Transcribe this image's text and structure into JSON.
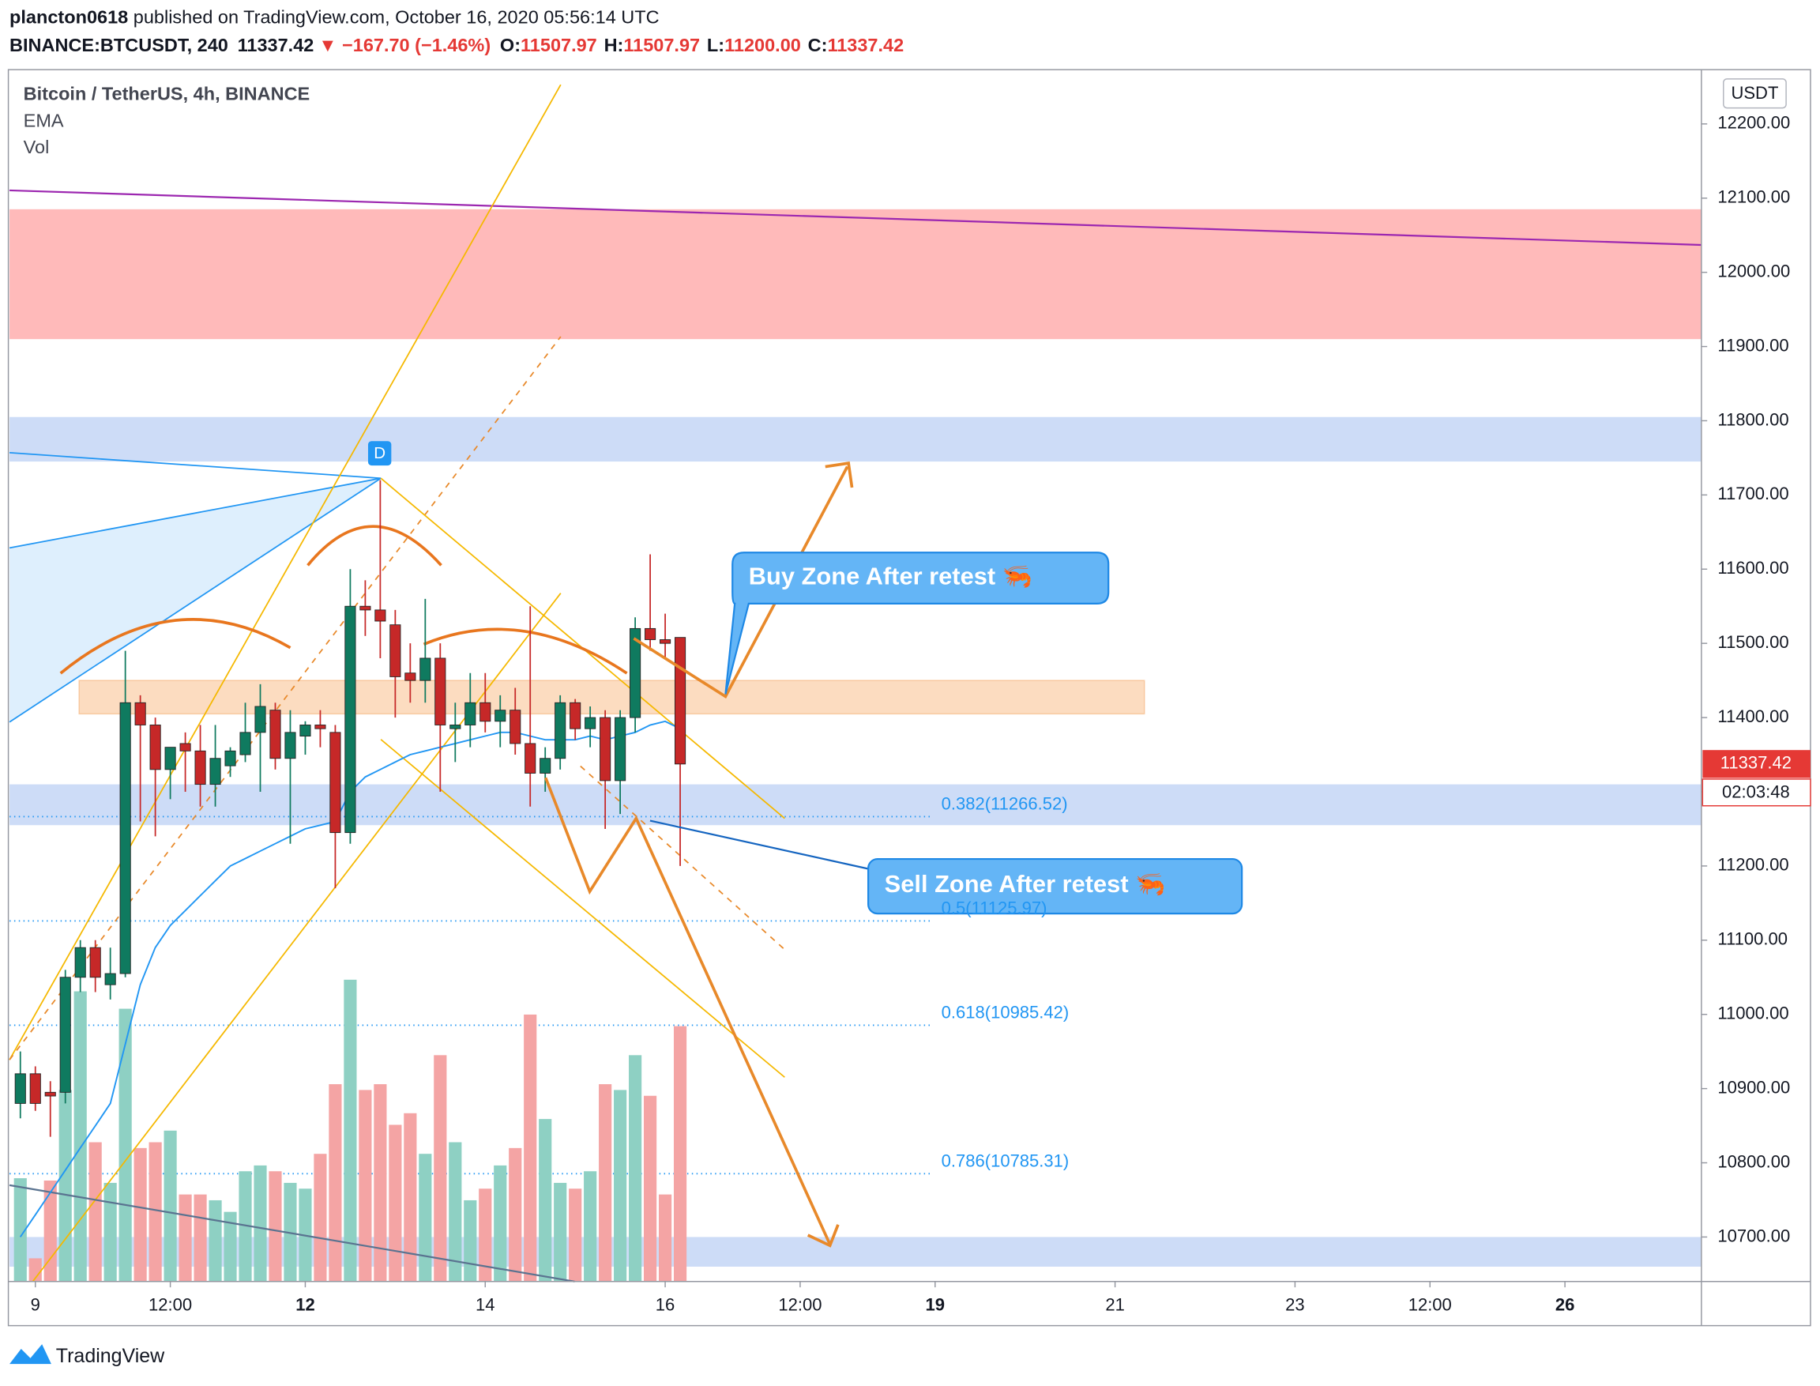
{
  "header": {
    "user": "plancton0618",
    "published": "published on TradingView.com, October 16, 2020 05:56:14 UTC",
    "symbol": "BINANCE:BTCUSDT, 240",
    "last": "11337.42",
    "change": "▼ −167.70 (−1.46%)",
    "ohlc": [
      {
        "key": "O:",
        "value": "11507.97"
      },
      {
        "key": "H:",
        "value": "11507.97"
      },
      {
        "key": "L:",
        "value": "11200.00"
      },
      {
        "key": "C:",
        "value": "11337.42"
      }
    ]
  },
  "chart_data": {
    "type": "candlestick",
    "title": "Bitcoin / TetherUS, 4h, BINANCE",
    "indicators": [
      "EMA",
      "Vol"
    ],
    "currency": "USDT",
    "open": [
      10880,
      10920,
      10895,
      10895,
      11050,
      11090,
      11040,
      11055,
      11420,
      11390,
      11330,
      11365,
      11355,
      11310,
      11335,
      11350,
      11380,
      11410,
      11345,
      11375,
      11390,
      11380,
      11245,
      11550,
      11545,
      11525,
      11460,
      11450,
      11480,
      11385,
      11390,
      11420,
      11395,
      11410,
      11365,
      11325,
      11345,
      11420,
      11385,
      11400,
      11315,
      11400,
      11520,
      11505,
      11507.97
    ],
    "high": [
      10950,
      10930,
      10910,
      11060,
      11100,
      11100,
      11090,
      11490,
      11430,
      11400,
      11360,
      11380,
      11390,
      11390,
      11360,
      11420,
      11445,
      11420,
      11410,
      11395,
      11410,
      11390,
      11600,
      11585,
      11720,
      11545,
      11500,
      11560,
      11500,
      11420,
      11460,
      11460,
      11430,
      11440,
      11550,
      11360,
      11430,
      11425,
      11415,
      11410,
      11410,
      11535,
      11620,
      11540,
      11507.97
    ],
    "low": [
      10860,
      10870,
      10835,
      10880,
      11030,
      11030,
      11020,
      11050,
      11260,
      11240,
      11290,
      11300,
      11280,
      11280,
      11320,
      11340,
      11300,
      11330,
      11230,
      11350,
      11360,
      11170,
      11230,
      11510,
      11480,
      11400,
      11420,
      11420,
      11300,
      11340,
      11360,
      11380,
      11360,
      11350,
      11280,
      11300,
      11330,
      11370,
      11360,
      11250,
      11270,
      11380,
      11490,
      11480,
      11200
    ],
    "close": [
      10920,
      10880,
      10890,
      11050,
      11090,
      11050,
      11055,
      11420,
      11390,
      11330,
      11360,
      11355,
      11310,
      11345,
      11355,
      11380,
      11415,
      11345,
      11380,
      11390,
      11385,
      11245,
      11550,
      11545,
      11530,
      11455,
      11450,
      11480,
      11390,
      11390,
      11420,
      11395,
      11410,
      11365,
      11325,
      11345,
      11420,
      11385,
      11400,
      11315,
      11400,
      11520,
      11505,
      11500,
      11337.42
    ],
    "ema": [
      10700,
      10730,
      10760,
      10790,
      10820,
      10850,
      10880,
      10960,
      11040,
      11090,
      11120,
      11140,
      11160,
      11180,
      11200,
      11210,
      11220,
      11230,
      11240,
      11250,
      11255,
      11260,
      11300,
      11320,
      11330,
      11340,
      11350,
      11355,
      11360,
      11365,
      11370,
      11375,
      11380,
      11380,
      11375,
      11370,
      11370,
      11370,
      11375,
      11370,
      11375,
      11380,
      11390,
      11395,
      11385
    ],
    "volume": [
      89,
      20,
      87,
      165,
      250,
      120,
      85,
      235,
      115,
      120,
      130,
      75,
      75,
      70,
      60,
      95,
      100,
      95,
      85,
      80,
      110,
      170,
      260,
      165,
      170,
      135,
      145,
      110,
      195,
      120,
      70,
      80,
      100,
      115,
      230,
      140,
      85,
      80,
      95,
      170,
      165,
      195,
      160,
      75,
      220
    ],
    "up_color": "#0f7a5f",
    "down_color": "#c62828",
    "up_volume_color": "#8ed0c3",
    "down_volume_color": "#f4a4a4",
    "ema_color": "#2196f3",
    "xlim": [
      -0.8,
      112.1
    ],
    "xticks": [
      {
        "value": 1,
        "label": "9"
      },
      {
        "value": 10,
        "label": "12:00"
      },
      {
        "value": 19,
        "label": "12"
      },
      {
        "value": 31,
        "label": "14"
      },
      {
        "value": 43,
        "label": "16"
      },
      {
        "value": 52,
        "label": "12:00"
      },
      {
        "value": 61,
        "label": "19"
      },
      {
        "value": 73,
        "label": "21"
      },
      {
        "value": 85,
        "label": "23"
      },
      {
        "value": 94,
        "label": "12:00"
      },
      {
        "value": 103,
        "label": "26"
      }
    ],
    "ylim": [
      10640,
      12270
    ],
    "yticks": [
      {
        "value": 10700,
        "label": "10700.00"
      },
      {
        "value": 10800,
        "label": "10800.00"
      },
      {
        "value": 10900,
        "label": "10900.00"
      },
      {
        "value": 11000,
        "label": "11000.00"
      },
      {
        "value": 11100,
        "label": "11100.00"
      },
      {
        "value": 11200,
        "label": "11200.00"
      },
      {
        "value": 11300,
        "label": "11300.00"
      },
      {
        "value": 11400,
        "label": "11400.00"
      },
      {
        "value": 11500,
        "label": "11500.00"
      },
      {
        "value": 11600,
        "label": "11600.00"
      },
      {
        "value": 11700,
        "label": "11700.00"
      },
      {
        "value": 11800,
        "label": "11800.00"
      },
      {
        "value": 11900,
        "label": "11900.00"
      },
      {
        "value": 12000,
        "label": "12000.00"
      },
      {
        "value": 12100,
        "label": "12100.00"
      },
      {
        "value": 12200,
        "label": "12200.00"
      }
    ],
    "countdown": "02:03:48",
    "marker": "D",
    "zones": [
      {
        "from": 11910,
        "to": 12085,
        "color": "#ffbaba"
      },
      {
        "from": 11745,
        "to": 11805,
        "color": "#cddcf7"
      },
      {
        "from": 11405,
        "to": 11450,
        "color": "#fcdcc0"
      },
      {
        "from": 11255,
        "to": 11310,
        "color": "#cddcf7"
      },
      {
        "from": 10660,
        "to": 10700,
        "color": "#cddcf7"
      }
    ],
    "fib_levels": [
      {
        "price": 11266.52,
        "label": "0.382(11266.52)"
      },
      {
        "price": 11125.97,
        "label": "0.5(11125.97)"
      },
      {
        "price": 10985.42,
        "label": "0.618(10985.42)"
      },
      {
        "price": 10785.31,
        "label": "0.786(10785.31)"
      }
    ],
    "callouts": [
      "Buy Zone After retest 🦐",
      "Sell Zone After retest 🦐"
    ]
  },
  "footer": {
    "brand": "TradingView"
  }
}
